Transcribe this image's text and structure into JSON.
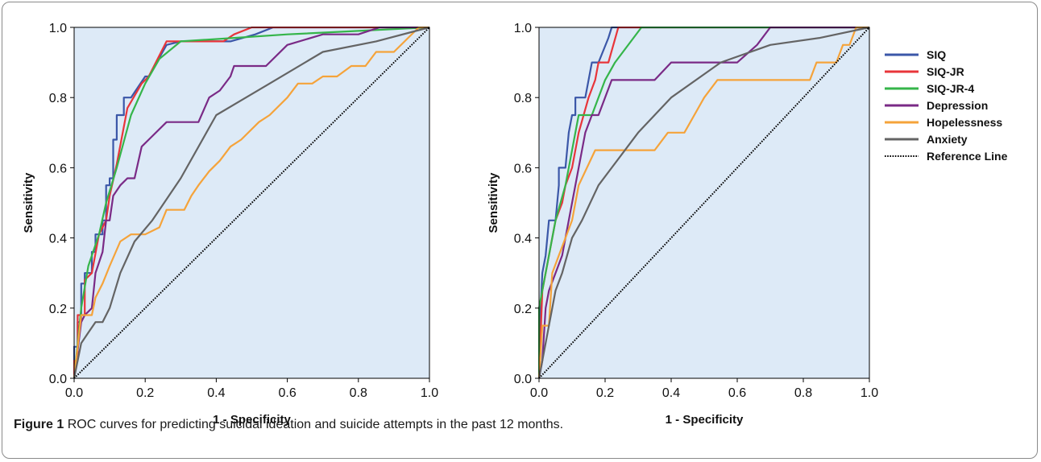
{
  "caption": {
    "label": "Figure 1",
    "text": "ROC curves for predicting suicidal ideation and suicide attempts in the past 12 months."
  },
  "legend": {
    "placement": "right",
    "items": [
      {
        "name": "SIQ",
        "color": "#3b57a8",
        "style": "solid"
      },
      {
        "name": "SIQ-JR",
        "color": "#e8353a",
        "style": "solid"
      },
      {
        "name": "SIQ-JR-4",
        "color": "#35b54a",
        "style": "solid"
      },
      {
        "name": "Depression",
        "color": "#7a2a86",
        "style": "solid"
      },
      {
        "name": "Hopelessness",
        "color": "#f5a33a",
        "style": "solid"
      },
      {
        "name": "Anxiety",
        "color": "#646464",
        "style": "solid"
      },
      {
        "name": "Reference Line",
        "color": "#000000",
        "style": "dotted"
      }
    ]
  },
  "chart_data": [
    {
      "type": "line",
      "xlabel": "1 - Specificity",
      "ylabel": "Sensitivity",
      "xlim": [
        0,
        1
      ],
      "ylim": [
        0,
        1
      ],
      "xticks": [
        "0.0",
        "0.2",
        "0.4",
        "0.6",
        "0.8",
        "1.0"
      ],
      "yticks": [
        "0.0",
        "0.2",
        "0.4",
        "0.6",
        "0.8",
        "1.0"
      ],
      "background": "#ddeaf7",
      "series": [
        {
          "name": "SIQ",
          "points": [
            [
              0,
              0
            ],
            [
              0,
              0.09
            ],
            [
              0.01,
              0.09
            ],
            [
              0.01,
              0.16
            ],
            [
              0.02,
              0.16
            ],
            [
              0.02,
              0.27
            ],
            [
              0.03,
              0.27
            ],
            [
              0.03,
              0.3
            ],
            [
              0.05,
              0.3
            ],
            [
              0.05,
              0.36
            ],
            [
              0.06,
              0.36
            ],
            [
              0.06,
              0.41
            ],
            [
              0.08,
              0.41
            ],
            [
              0.08,
              0.45
            ],
            [
              0.09,
              0.45
            ],
            [
              0.09,
              0.55
            ],
            [
              0.1,
              0.55
            ],
            [
              0.1,
              0.57
            ],
            [
              0.11,
              0.57
            ],
            [
              0.11,
              0.68
            ],
            [
              0.12,
              0.68
            ],
            [
              0.12,
              0.75
            ],
            [
              0.14,
              0.75
            ],
            [
              0.14,
              0.8
            ],
            [
              0.16,
              0.8
            ],
            [
              0.2,
              0.86
            ],
            [
              0.21,
              0.86
            ],
            [
              0.26,
              0.95
            ],
            [
              0.3,
              0.96
            ],
            [
              0.44,
              0.96
            ],
            [
              0.51,
              0.98
            ],
            [
              0.56,
              1.0
            ],
            [
              1.0,
              1.0
            ]
          ]
        },
        {
          "name": "SIQ-JR",
          "points": [
            [
              0,
              0
            ],
            [
              0,
              0.05
            ],
            [
              0.01,
              0.05
            ],
            [
              0.01,
              0.18
            ],
            [
              0.03,
              0.18
            ],
            [
              0.03,
              0.28
            ],
            [
              0.05,
              0.3
            ],
            [
              0.07,
              0.41
            ],
            [
              0.09,
              0.45
            ],
            [
              0.1,
              0.52
            ],
            [
              0.12,
              0.61
            ],
            [
              0.15,
              0.77
            ],
            [
              0.19,
              0.84
            ],
            [
              0.21,
              0.86
            ],
            [
              0.26,
              0.96
            ],
            [
              0.3,
              0.96
            ],
            [
              0.42,
              0.96
            ],
            [
              0.45,
              0.98
            ],
            [
              0.5,
              1.0
            ],
            [
              1.0,
              1.0
            ]
          ]
        },
        {
          "name": "SIQ-JR-4",
          "points": [
            [
              0,
              0
            ],
            [
              0.02,
              0.2
            ],
            [
              0.04,
              0.32
            ],
            [
              0.07,
              0.41
            ],
            [
              0.09,
              0.5
            ],
            [
              0.12,
              0.6
            ],
            [
              0.16,
              0.75
            ],
            [
              0.2,
              0.84
            ],
            [
              0.24,
              0.91
            ],
            [
              0.3,
              0.96
            ],
            [
              0.45,
              0.97
            ],
            [
              0.6,
              0.98
            ],
            [
              0.8,
              0.99
            ],
            [
              1.0,
              1.0
            ]
          ]
        },
        {
          "name": "Depression",
          "points": [
            [
              0,
              0
            ],
            [
              0.02,
              0.16
            ],
            [
              0.03,
              0.18
            ],
            [
              0.05,
              0.2
            ],
            [
              0.06,
              0.3
            ],
            [
              0.08,
              0.36
            ],
            [
              0.09,
              0.45
            ],
            [
              0.1,
              0.45
            ],
            [
              0.11,
              0.52
            ],
            [
              0.13,
              0.55
            ],
            [
              0.15,
              0.57
            ],
            [
              0.17,
              0.57
            ],
            [
              0.19,
              0.66
            ],
            [
              0.21,
              0.68
            ],
            [
              0.26,
              0.73
            ],
            [
              0.35,
              0.73
            ],
            [
              0.38,
              0.8
            ],
            [
              0.41,
              0.82
            ],
            [
              0.44,
              0.86
            ],
            [
              0.45,
              0.89
            ],
            [
              0.54,
              0.89
            ],
            [
              0.6,
              0.95
            ],
            [
              0.7,
              0.98
            ],
            [
              0.8,
              0.98
            ],
            [
              0.86,
              1.0
            ],
            [
              1.0,
              1.0
            ]
          ]
        },
        {
          "name": "Hopelessness",
          "points": [
            [
              0,
              0
            ],
            [
              0.02,
              0.18
            ],
            [
              0.05,
              0.18
            ],
            [
              0.06,
              0.23
            ],
            [
              0.08,
              0.27
            ],
            [
              0.1,
              0.32
            ],
            [
              0.13,
              0.39
            ],
            [
              0.16,
              0.41
            ],
            [
              0.2,
              0.41
            ],
            [
              0.24,
              0.43
            ],
            [
              0.26,
              0.48
            ],
            [
              0.31,
              0.48
            ],
            [
              0.33,
              0.52
            ],
            [
              0.35,
              0.55
            ],
            [
              0.38,
              0.59
            ],
            [
              0.41,
              0.62
            ],
            [
              0.44,
              0.66
            ],
            [
              0.47,
              0.68
            ],
            [
              0.52,
              0.73
            ],
            [
              0.55,
              0.75
            ],
            [
              0.6,
              0.8
            ],
            [
              0.63,
              0.84
            ],
            [
              0.67,
              0.84
            ],
            [
              0.7,
              0.86
            ],
            [
              0.74,
              0.86
            ],
            [
              0.78,
              0.89
            ],
            [
              0.82,
              0.89
            ],
            [
              0.85,
              0.93
            ],
            [
              0.9,
              0.93
            ],
            [
              0.94,
              0.97
            ],
            [
              0.97,
              1.0
            ],
            [
              1.0,
              1.0
            ]
          ]
        },
        {
          "name": "Anxiety",
          "points": [
            [
              0,
              0
            ],
            [
              0.02,
              0.1
            ],
            [
              0.04,
              0.13
            ],
            [
              0.06,
              0.16
            ],
            [
              0.08,
              0.16
            ],
            [
              0.1,
              0.2
            ],
            [
              0.13,
              0.3
            ],
            [
              0.17,
              0.39
            ],
            [
              0.22,
              0.45
            ],
            [
              0.3,
              0.57
            ],
            [
              0.4,
              0.75
            ],
            [
              0.55,
              0.84
            ],
            [
              0.7,
              0.93
            ],
            [
              0.85,
              0.96
            ],
            [
              1.0,
              1.0
            ]
          ]
        },
        {
          "name": "Reference Line",
          "points": [
            [
              0,
              0
            ],
            [
              1,
              1
            ]
          ],
          "dotted": true
        }
      ]
    },
    {
      "type": "line",
      "xlabel": "1 - Specificity",
      "ylabel": "Sensitivity",
      "xlim": [
        0,
        1
      ],
      "ylim": [
        0,
        1
      ],
      "xticks": [
        "0.0",
        "0.2",
        "0.4",
        "0.6",
        "0.8",
        "1.0"
      ],
      "yticks": [
        "0.0",
        "0.2",
        "0.4",
        "0.6",
        "0.8",
        "1.0"
      ],
      "background": "#ddeaf7",
      "series": [
        {
          "name": "SIQ",
          "points": [
            [
              0,
              0
            ],
            [
              0,
              0.1
            ],
            [
              0.01,
              0.3
            ],
            [
              0.02,
              0.35
            ],
            [
              0.03,
              0.45
            ],
            [
              0.05,
              0.45
            ],
            [
              0.06,
              0.55
            ],
            [
              0.06,
              0.6
            ],
            [
              0.08,
              0.6
            ],
            [
              0.09,
              0.7
            ],
            [
              0.1,
              0.75
            ],
            [
              0.11,
              0.75
            ],
            [
              0.11,
              0.8
            ],
            [
              0.14,
              0.8
            ],
            [
              0.16,
              0.9
            ],
            [
              0.18,
              0.9
            ],
            [
              0.21,
              0.97
            ],
            [
              0.22,
              1.0
            ],
            [
              1.0,
              1.0
            ]
          ]
        },
        {
          "name": "SIQ-JR",
          "points": [
            [
              0,
              0
            ],
            [
              0.01,
              0.25
            ],
            [
              0.03,
              0.35
            ],
            [
              0.04,
              0.4
            ],
            [
              0.05,
              0.45
            ],
            [
              0.07,
              0.5
            ],
            [
              0.08,
              0.55
            ],
            [
              0.1,
              0.6
            ],
            [
              0.12,
              0.7
            ],
            [
              0.15,
              0.8
            ],
            [
              0.17,
              0.85
            ],
            [
              0.18,
              0.9
            ],
            [
              0.21,
              0.9
            ],
            [
              0.24,
              1.0
            ],
            [
              1.0,
              1.0
            ]
          ]
        },
        {
          "name": "SIQ-JR-4",
          "points": [
            [
              0,
              0
            ],
            [
              0,
              0.2
            ],
            [
              0.02,
              0.3
            ],
            [
              0.05,
              0.45
            ],
            [
              0.08,
              0.55
            ],
            [
              0.1,
              0.65
            ],
            [
              0.12,
              0.75
            ],
            [
              0.16,
              0.75
            ],
            [
              0.2,
              0.85
            ],
            [
              0.23,
              0.9
            ],
            [
              0.31,
              1.0
            ],
            [
              1.0,
              1.0
            ]
          ]
        },
        {
          "name": "Depression",
          "points": [
            [
              0,
              0
            ],
            [
              0.01,
              0.05
            ],
            [
              0.02,
              0.2
            ],
            [
              0.03,
              0.25
            ],
            [
              0.05,
              0.3
            ],
            [
              0.07,
              0.35
            ],
            [
              0.08,
              0.4
            ],
            [
              0.1,
              0.5
            ],
            [
              0.12,
              0.6
            ],
            [
              0.14,
              0.7
            ],
            [
              0.16,
              0.75
            ],
            [
              0.18,
              0.75
            ],
            [
              0.22,
              0.85
            ],
            [
              0.35,
              0.85
            ],
            [
              0.4,
              0.9
            ],
            [
              0.6,
              0.9
            ],
            [
              0.66,
              0.95
            ],
            [
              0.7,
              1.0
            ],
            [
              1.0,
              1.0
            ]
          ]
        },
        {
          "name": "Hopelessness",
          "points": [
            [
              0,
              0
            ],
            [
              0.01,
              0.15
            ],
            [
              0.03,
              0.15
            ],
            [
              0.04,
              0.3
            ],
            [
              0.06,
              0.35
            ],
            [
              0.08,
              0.4
            ],
            [
              0.1,
              0.45
            ],
            [
              0.12,
              0.55
            ],
            [
              0.17,
              0.65
            ],
            [
              0.35,
              0.65
            ],
            [
              0.39,
              0.7
            ],
            [
              0.44,
              0.7
            ],
            [
              0.47,
              0.75
            ],
            [
              0.5,
              0.8
            ],
            [
              0.54,
              0.85
            ],
            [
              0.82,
              0.85
            ],
            [
              0.84,
              0.9
            ],
            [
              0.9,
              0.9
            ],
            [
              0.92,
              0.95
            ],
            [
              0.94,
              0.95
            ],
            [
              0.96,
              1.0
            ],
            [
              1.0,
              1.0
            ]
          ]
        },
        {
          "name": "Anxiety",
          "points": [
            [
              0,
              0
            ],
            [
              0.03,
              0.15
            ],
            [
              0.05,
              0.25
            ],
            [
              0.07,
              0.3
            ],
            [
              0.1,
              0.4
            ],
            [
              0.13,
              0.45
            ],
            [
              0.18,
              0.55
            ],
            [
              0.22,
              0.6
            ],
            [
              0.3,
              0.7
            ],
            [
              0.4,
              0.8
            ],
            [
              0.55,
              0.9
            ],
            [
              0.7,
              0.95
            ],
            [
              0.85,
              0.97
            ],
            [
              1.0,
              1.0
            ]
          ]
        },
        {
          "name": "Reference Line",
          "points": [
            [
              0,
              0
            ],
            [
              1,
              1
            ]
          ],
          "dotted": true
        }
      ]
    }
  ]
}
